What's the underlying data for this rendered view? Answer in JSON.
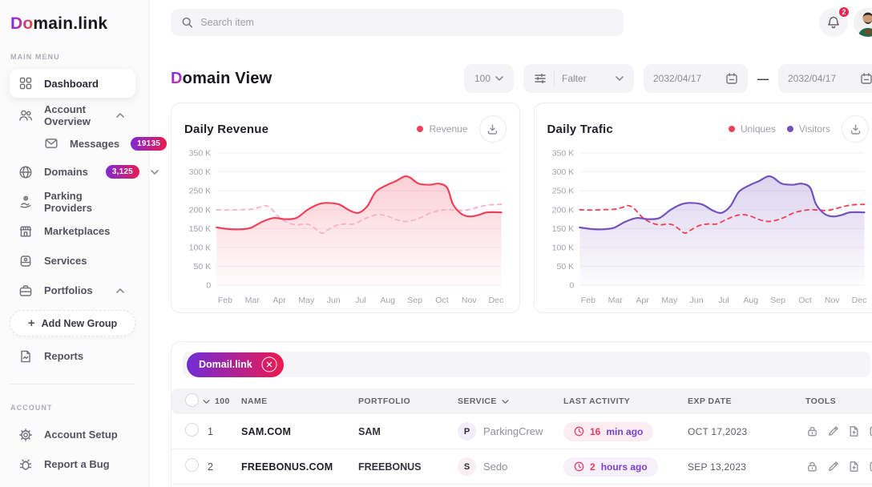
{
  "logo": {
    "prefix": "Do",
    "rest": "main.link"
  },
  "topbar": {
    "search_placeholder": "Search item",
    "notification_count": "2"
  },
  "sidebar": {
    "main_menu_label": "MAIN MENU",
    "account_label": "ACCOUNT",
    "dashboard": "Dashboard",
    "account_overview": "Account Overview",
    "messages": "Messages",
    "messages_badge": "19135",
    "domains": "Domains",
    "domains_badge": "3,125",
    "parking_providers": "Parking Providers",
    "marketplaces": "Marketplaces",
    "services": "Services",
    "portfolios": "Portfolios",
    "add_new_group_plus": "+",
    "add_new_group": "Add New Group",
    "reports": "Reports",
    "account_setup": "Account Setup",
    "report_a_bug": "Report a Bug"
  },
  "header": {
    "title_d": "D",
    "title_rest": "omain View",
    "page_size": "100",
    "filter_label": "Falter",
    "date_from": "2032/04/17",
    "range_separator": "—",
    "date_to": "2032/04/17"
  },
  "chart_data": [
    {
      "type": "area",
      "title": "Daily Revenue",
      "x_labels": [
        "Feb",
        "Mar",
        "Apr",
        "May",
        "Jun",
        "Jul",
        "Aug",
        "Sep",
        "Oct",
        "Nov",
        "Dec"
      ],
      "y_ticks": [
        "350 K",
        "300 K",
        "250 K",
        "200 K",
        "150 K",
        "100 K",
        "50 K",
        "0"
      ],
      "ylim": [
        0,
        350
      ],
      "y_unit": "K (thousands)",
      "grid": true,
      "legend_position": "top-right",
      "legend": [
        {
          "label": "Revenue",
          "color": "#F1415A"
        }
      ],
      "series": [
        {
          "name": "Revenue",
          "color": "#F1415A",
          "line": "solid",
          "area_fill": true,
          "points": [
            [
              0,
              153
            ],
            [
              4,
              149
            ],
            [
              8,
              148
            ],
            [
              12,
              152
            ],
            [
              16,
              168
            ],
            [
              20,
              178
            ],
            [
              24,
              175
            ],
            [
              28,
              178
            ],
            [
              32,
              200
            ],
            [
              36,
              215
            ],
            [
              39,
              218
            ],
            [
              43,
              214
            ],
            [
              47,
              197
            ],
            [
              50,
              192
            ],
            [
              53,
              210
            ],
            [
              56,
              248
            ],
            [
              60,
              266
            ],
            [
              63,
              276
            ],
            [
              66,
              288
            ],
            [
              68,
              285
            ],
            [
              71,
              269
            ],
            [
              75,
              266
            ],
            [
              78,
              269
            ],
            [
              81,
              258
            ],
            [
              83,
              215
            ],
            [
              86,
              189
            ],
            [
              89,
              182
            ],
            [
              92,
              186
            ],
            [
              95,
              193
            ],
            [
              100,
              193
            ]
          ]
        },
        {
          "name": "Revenue comparison (unlabeled dashed)",
          "color": "#F7B3C4",
          "line": "dashed",
          "area_fill": false,
          "points": [
            [
              0,
              200
            ],
            [
              4,
              199
            ],
            [
              8,
              200
            ],
            [
              12,
              201
            ],
            [
              15,
              206
            ],
            [
              17,
              211
            ],
            [
              19,
              204
            ],
            [
              22,
              180
            ],
            [
              25,
              166
            ],
            [
              28,
              160
            ],
            [
              31,
              162
            ],
            [
              33,
              159
            ],
            [
              35,
              148
            ],
            [
              37,
              138
            ],
            [
              39,
              146
            ],
            [
              42,
              158
            ],
            [
              45,
              162
            ],
            [
              48,
              162
            ],
            [
              51,
              172
            ],
            [
              54,
              182
            ],
            [
              57,
              187
            ],
            [
              60,
              183
            ],
            [
              63,
              174
            ],
            [
              66,
              169
            ],
            [
              69,
              172
            ],
            [
              72,
              180
            ],
            [
              75,
              191
            ],
            [
              78,
              197
            ],
            [
              81,
              200
            ],
            [
              84,
              199
            ],
            [
              87,
              198
            ],
            [
              90,
              203
            ],
            [
              93,
              209
            ],
            [
              96,
              213
            ],
            [
              100,
              214
            ]
          ]
        }
      ]
    },
    {
      "type": "area",
      "title": "Daily Trafic",
      "x_labels": [
        "Feb",
        "Mar",
        "Apr",
        "May",
        "Jun",
        "Jul",
        "Aug",
        "Sep",
        "Oct",
        "Nov",
        "Dec"
      ],
      "y_ticks": [
        "350 K",
        "300 K",
        "250 K",
        "200 K",
        "150 K",
        "100 K",
        "50 K",
        "0"
      ],
      "ylim": [
        0,
        350
      ],
      "y_unit": "K (thousands)",
      "grid": true,
      "legend_position": "top-right",
      "legend": [
        {
          "label": "Uniques",
          "color": "#F1415A"
        },
        {
          "label": "Visitors",
          "color": "#7451BE"
        }
      ],
      "series": [
        {
          "name": "Visitors",
          "color": "#7451BE",
          "line": "solid",
          "area_fill": true,
          "points": [
            [
              0,
              153
            ],
            [
              4,
              149
            ],
            [
              8,
              148
            ],
            [
              12,
              152
            ],
            [
              16,
              168
            ],
            [
              20,
              178
            ],
            [
              24,
              175
            ],
            [
              28,
              178
            ],
            [
              32,
              200
            ],
            [
              36,
              215
            ],
            [
              39,
              218
            ],
            [
              43,
              214
            ],
            [
              47,
              197
            ],
            [
              50,
              192
            ],
            [
              53,
              210
            ],
            [
              56,
              248
            ],
            [
              60,
              266
            ],
            [
              63,
              276
            ],
            [
              66,
              288
            ],
            [
              68,
              285
            ],
            [
              71,
              269
            ],
            [
              75,
              266
            ],
            [
              78,
              269
            ],
            [
              81,
              258
            ],
            [
              83,
              215
            ],
            [
              86,
              189
            ],
            [
              89,
              182
            ],
            [
              92,
              186
            ],
            [
              95,
              193
            ],
            [
              100,
              193
            ]
          ]
        },
        {
          "name": "Uniques",
          "color": "#F43F54",
          "line": "dashed",
          "area_fill": false,
          "points": [
            [
              0,
              200
            ],
            [
              4,
              199
            ],
            [
              8,
              200
            ],
            [
              12,
              201
            ],
            [
              15,
              206
            ],
            [
              17,
              211
            ],
            [
              19,
              204
            ],
            [
              22,
              180
            ],
            [
              25,
              166
            ],
            [
              28,
              160
            ],
            [
              31,
              162
            ],
            [
              33,
              159
            ],
            [
              35,
              148
            ],
            [
              37,
              138
            ],
            [
              39,
              146
            ],
            [
              42,
              158
            ],
            [
              45,
              162
            ],
            [
              48,
              162
            ],
            [
              51,
              172
            ],
            [
              54,
              182
            ],
            [
              57,
              187
            ],
            [
              60,
              183
            ],
            [
              63,
              174
            ],
            [
              66,
              169
            ],
            [
              69,
              172
            ],
            [
              72,
              180
            ],
            [
              75,
              191
            ],
            [
              78,
              197
            ],
            [
              81,
              200
            ],
            [
              84,
              199
            ],
            [
              87,
              198
            ],
            [
              90,
              203
            ],
            [
              93,
              209
            ],
            [
              96,
              213
            ],
            [
              100,
              214
            ]
          ]
        }
      ]
    }
  ],
  "table": {
    "filter_chip": "Domail.link",
    "count": "100",
    "columns": [
      "NAME",
      "PORTFOLIO",
      "SERVICE",
      "LAST ACTIVITY",
      "EXP DATE",
      "TOOLS"
    ],
    "rows": [
      {
        "index": "1",
        "name": "SAM.COM",
        "portfolio": "SAM",
        "service_initial": "P",
        "service": "ParkingCrew",
        "service_style": "purple",
        "activity_value": "16",
        "activity_unit": "min ago",
        "activity_style": "pink",
        "exp_date": "OCT 17,2023"
      },
      {
        "index": "2",
        "name": "FREEBONUS.COM",
        "portfolio": "FREEBONUS",
        "service_initial": "S",
        "service": "Sedo",
        "service_style": "pink",
        "activity_value": "2",
        "activity_unit": "hours ago",
        "activity_style": "purple",
        "exp_date": "SEP 13,2023"
      }
    ]
  },
  "colors": {
    "accent_gradient_from": "#7D2AD8",
    "accent_gradient_to": "#ED1A4E",
    "revenue_line": "#F1415A",
    "revenue_dashed": "#F7B3C4",
    "visitors_line": "#7451BE",
    "uniques_dashed": "#F43F54",
    "notification_badge": "#F1224E"
  }
}
